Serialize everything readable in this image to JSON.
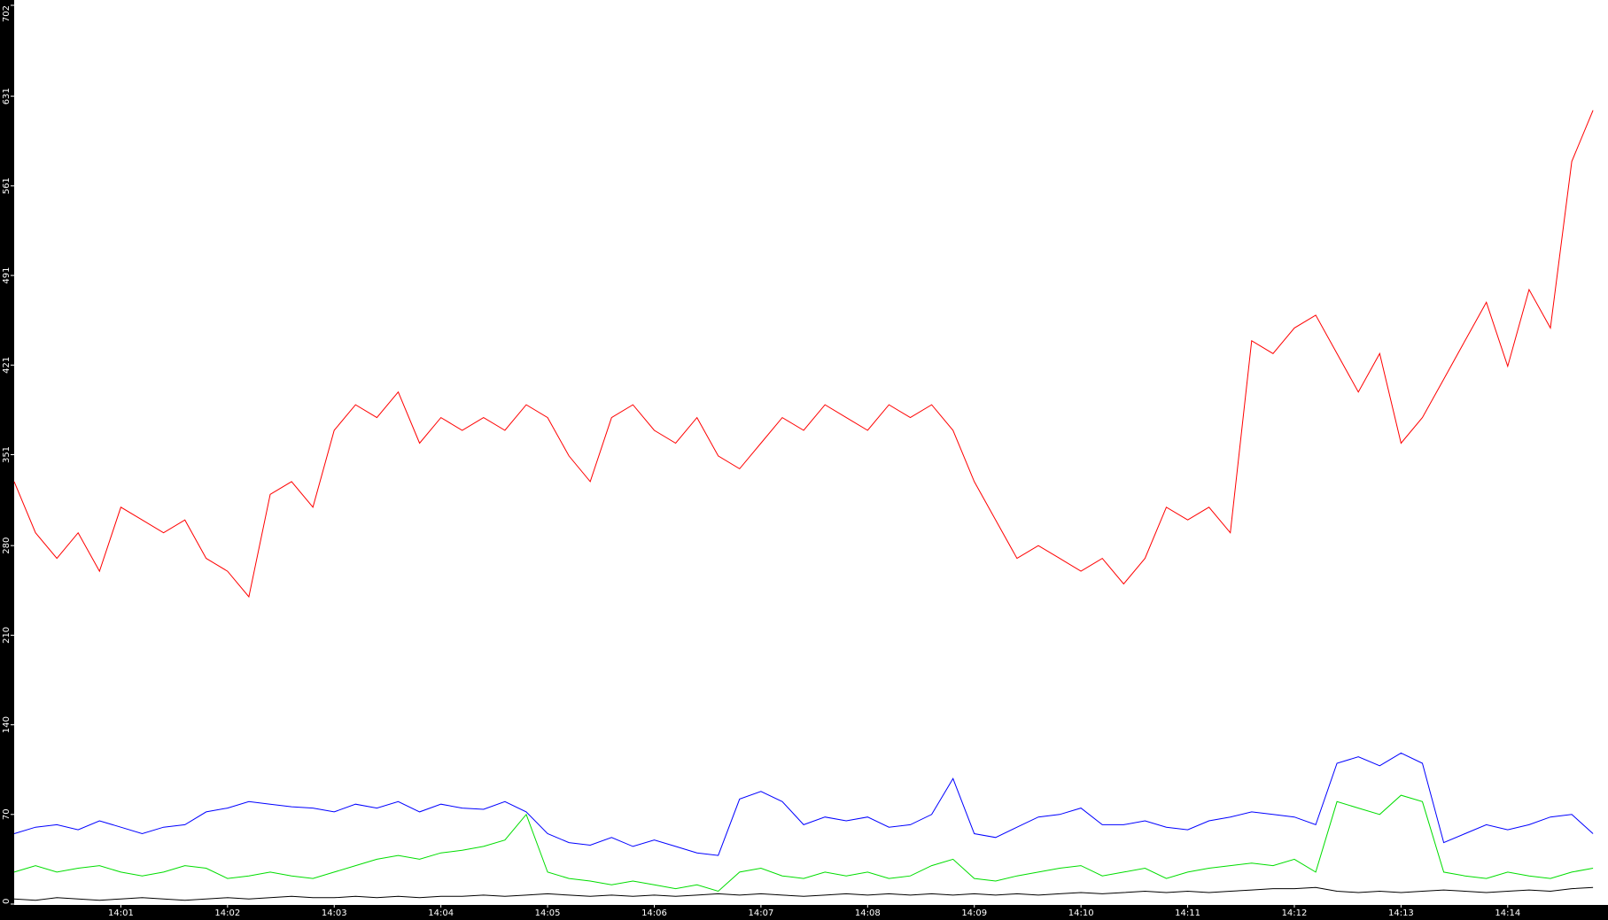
{
  "chart_data": {
    "type": "line",
    "x": [
      0,
      0.2,
      0.4,
      0.6,
      0.8,
      1,
      1.2,
      1.4,
      1.6,
      1.8,
      2,
      2.2,
      2.4,
      2.6,
      2.8,
      3,
      3.2,
      3.4,
      3.6,
      3.8,
      4,
      4.2,
      4.4,
      4.6,
      4.8,
      5,
      5.2,
      5.4,
      5.6,
      5.8,
      6,
      6.2,
      6.4,
      6.6,
      6.8,
      7,
      7.2,
      7.4,
      7.6,
      7.8,
      8,
      8.2,
      8.4,
      8.6,
      8.8,
      9,
      9.2,
      9.4,
      9.6,
      9.8,
      10,
      10.2,
      10.4,
      10.6,
      10.8,
      11,
      11.2,
      11.4,
      11.6,
      11.8,
      12,
      12.2,
      12.4,
      12.6,
      12.8,
      13,
      13.2,
      13.4,
      13.6,
      13.8,
      14,
      14.2,
      14.4,
      14.6,
      14.8
    ],
    "series": [
      {
        "color": "#ff0000",
        "values": [
          330,
          290,
          270,
          290,
          260,
          310,
          300,
          290,
          300,
          270,
          260,
          240,
          320,
          330,
          310,
          370,
          390,
          380,
          400,
          360,
          380,
          370,
          380,
          370,
          390,
          380,
          350,
          330,
          380,
          390,
          370,
          360,
          380,
          350,
          340,
          360,
          380,
          370,
          390,
          380,
          370,
          390,
          380,
          390,
          370,
          330,
          300,
          270,
          280,
          270,
          260,
          270,
          250,
          270,
          310,
          300,
          310,
          290,
          440,
          430,
          450,
          460,
          430,
          400,
          430,
          360,
          380,
          410,
          440,
          470,
          420,
          480,
          450,
          580,
          620
        ]
      },
      {
        "color": "#0000ff",
        "values": [
          55,
          60,
          62,
          58,
          65,
          60,
          55,
          60,
          62,
          72,
          75,
          80,
          78,
          76,
          75,
          72,
          78,
          75,
          80,
          72,
          78,
          75,
          74,
          80,
          72,
          55,
          48,
          46,
          52,
          45,
          50,
          45,
          40,
          38,
          82,
          88,
          80,
          62,
          68,
          65,
          68,
          60,
          62,
          70,
          98,
          55,
          52,
          60,
          68,
          70,
          75,
          62,
          62,
          65,
          60,
          58,
          65,
          68,
          72,
          70,
          68,
          62,
          110,
          115,
          108,
          118,
          110,
          48,
          55,
          62,
          58,
          62,
          68,
          70,
          55
        ]
      },
      {
        "color": "#00dd00",
        "values": [
          25,
          30,
          25,
          28,
          30,
          25,
          22,
          25,
          30,
          28,
          20,
          22,
          25,
          22,
          20,
          25,
          30,
          35,
          38,
          35,
          40,
          42,
          45,
          50,
          70,
          25,
          20,
          18,
          15,
          18,
          15,
          12,
          15,
          10,
          25,
          28,
          22,
          20,
          25,
          22,
          25,
          20,
          22,
          30,
          35,
          20,
          18,
          22,
          25,
          28,
          30,
          22,
          25,
          28,
          20,
          25,
          28,
          30,
          32,
          30,
          35,
          25,
          80,
          75,
          70,
          85,
          80,
          25,
          22,
          20,
          25,
          22,
          20,
          25,
          28
        ]
      },
      {
        "color": "#000000",
        "values": [
          4,
          3,
          5,
          4,
          3,
          4,
          5,
          4,
          3,
          4,
          5,
          4,
          5,
          6,
          5,
          5,
          6,
          5,
          6,
          5,
          6,
          6,
          7,
          6,
          7,
          8,
          7,
          6,
          7,
          6,
          7,
          6,
          7,
          8,
          7,
          8,
          7,
          6,
          7,
          8,
          7,
          8,
          7,
          8,
          7,
          8,
          7,
          8,
          7,
          8,
          9,
          8,
          9,
          10,
          9,
          10,
          9,
          10,
          11,
          12,
          12,
          13,
          10,
          9,
          10,
          9,
          10,
          11,
          10,
          9,
          10,
          11,
          10,
          12,
          13
        ]
      }
    ],
    "xlim": [
      0,
      14.94
    ],
    "ylim": [
      0,
      702
    ],
    "xticks": [
      {
        "value": 1,
        "label": "14:01"
      },
      {
        "value": 2,
        "label": "14:02"
      },
      {
        "value": 3,
        "label": "14:03"
      },
      {
        "value": 4,
        "label": "14:04"
      },
      {
        "value": 5,
        "label": "14:05"
      },
      {
        "value": 6,
        "label": "14:06"
      },
      {
        "value": 7,
        "label": "14:07"
      },
      {
        "value": 8,
        "label": "14:08"
      },
      {
        "value": 9,
        "label": "14:09"
      },
      {
        "value": 10,
        "label": "14:10"
      },
      {
        "value": 11,
        "label": "14:11"
      },
      {
        "value": 12,
        "label": "14:12"
      },
      {
        "value": 13,
        "label": "14:13"
      },
      {
        "value": 14,
        "label": "14:14"
      }
    ],
    "yticks": [
      0,
      70,
      140,
      210,
      280,
      351,
      421,
      491,
      561,
      631,
      702
    ]
  }
}
